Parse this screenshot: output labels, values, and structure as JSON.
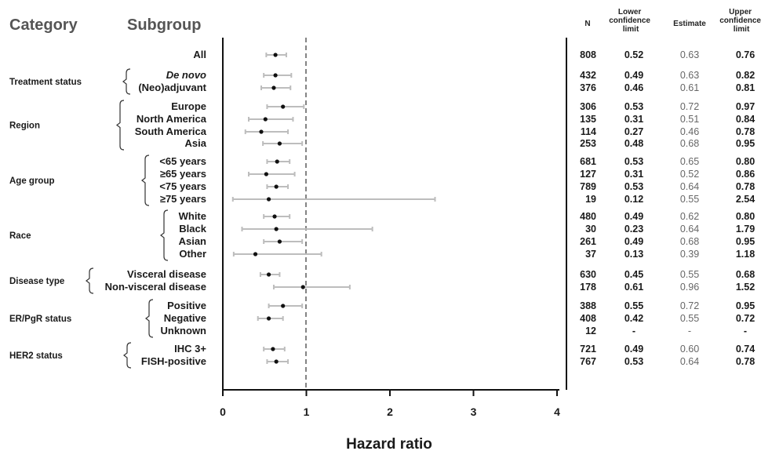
{
  "headers": {
    "category": "Category",
    "subgroup": "Subgroup",
    "n": "N",
    "lower": [
      "Lower",
      "confidence",
      "limit"
    ],
    "estimate": "Estimate",
    "upper": [
      "Upper",
      "confidence",
      "limit"
    ]
  },
  "chart_data": {
    "type": "forest",
    "title": "",
    "xlabel": "Hazard ratio",
    "ylabel": "",
    "xlim": [
      0,
      4
    ],
    "xticks": [
      0,
      1,
      2,
      3,
      4
    ],
    "reference_line": 1,
    "grid": false,
    "groups": [
      {
        "category": "",
        "rows": [
          {
            "label": "All",
            "italic": false,
            "n": "808",
            "lower": "0.52",
            "estimate": "0.63",
            "upper": "0.76"
          }
        ]
      },
      {
        "category": "Treatment status",
        "rows": [
          {
            "label": "De novo",
            "italic": true,
            "n": "432",
            "lower": "0.49",
            "estimate": "0.63",
            "upper": "0.82"
          },
          {
            "label": "(Neo)adjuvant",
            "italic": false,
            "n": "376",
            "lower": "0.46",
            "estimate": "0.61",
            "upper": "0.81"
          }
        ]
      },
      {
        "category": "Region",
        "rows": [
          {
            "label": "Europe",
            "italic": false,
            "n": "306",
            "lower": "0.53",
            "estimate": "0.72",
            "upper": "0.97"
          },
          {
            "label": "North America",
            "italic": false,
            "n": "135",
            "lower": "0.31",
            "estimate": "0.51",
            "upper": "0.84"
          },
          {
            "label": "South America",
            "italic": false,
            "n": "114",
            "lower": "0.27",
            "estimate": "0.46",
            "upper": "0.78"
          },
          {
            "label": "Asia",
            "italic": false,
            "n": "253",
            "lower": "0.48",
            "estimate": "0.68",
            "upper": "0.95"
          }
        ]
      },
      {
        "category": "Age group",
        "rows": [
          {
            "label": "<65 years",
            "italic": false,
            "n": "681",
            "lower": "0.53",
            "estimate": "0.65",
            "upper": "0.80"
          },
          {
            "label": "≥65 years",
            "italic": false,
            "n": "127",
            "lower": "0.31",
            "estimate": "0.52",
            "upper": "0.86"
          },
          {
            "label": "<75 years",
            "italic": false,
            "n": "789",
            "lower": "0.53",
            "estimate": "0.64",
            "upper": "0.78"
          },
          {
            "label": "≥75 years",
            "italic": false,
            "n": "19",
            "lower": "0.12",
            "estimate": "0.55",
            "upper": "2.54"
          }
        ]
      },
      {
        "category": "Race",
        "rows": [
          {
            "label": "White",
            "italic": false,
            "n": "480",
            "lower": "0.49",
            "estimate": "0.62",
            "upper": "0.80"
          },
          {
            "label": "Black",
            "italic": false,
            "n": "30",
            "lower": "0.23",
            "estimate": "0.64",
            "upper": "1.79"
          },
          {
            "label": "Asian",
            "italic": false,
            "n": "261",
            "lower": "0.49",
            "estimate": "0.68",
            "upper": "0.95"
          },
          {
            "label": "Other",
            "italic": false,
            "n": "37",
            "lower": "0.13",
            "estimate": "0.39",
            "upper": "1.18"
          }
        ]
      },
      {
        "category": "Disease type",
        "rows": [
          {
            "label": "Visceral disease",
            "italic": false,
            "n": "630",
            "lower": "0.45",
            "estimate": "0.55",
            "upper": "0.68"
          },
          {
            "label": "Non-visceral disease",
            "italic": false,
            "n": "178",
            "lower": "0.61",
            "estimate": "0.96",
            "upper": "1.52"
          }
        ]
      },
      {
        "category": "ER/PgR status",
        "rows": [
          {
            "label": "Positive",
            "italic": false,
            "n": "388",
            "lower": "0.55",
            "estimate": "0.72",
            "upper": "0.95"
          },
          {
            "label": "Negative",
            "italic": false,
            "n": "408",
            "lower": "0.42",
            "estimate": "0.55",
            "upper": "0.72"
          },
          {
            "label": "Unknown",
            "italic": false,
            "n": "12",
            "lower": "-",
            "estimate": "-",
            "upper": "-"
          }
        ]
      },
      {
        "category": "HER2 status",
        "rows": [
          {
            "label": "IHC 3+",
            "italic": false,
            "n": "721",
            "lower": "0.49",
            "estimate": "0.60",
            "upper": "0.74"
          },
          {
            "label": "FISH-positive",
            "italic": false,
            "n": "767",
            "lower": "0.53",
            "estimate": "0.64",
            "upper": "0.78"
          }
        ]
      }
    ]
  }
}
